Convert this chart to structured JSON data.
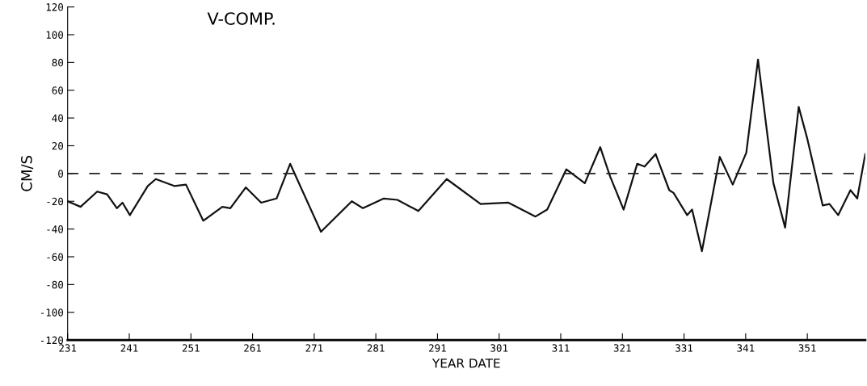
{
  "chart_data": {
    "type": "line",
    "title": "V-COMP.",
    "xlabel": "YEAR DATE",
    "ylabel": "CM/S",
    "x": [
      231,
      233.1,
      235.8,
      237.4,
      239.0,
      239.9,
      241.1,
      244.0,
      245.3,
      248.3,
      250.2,
      253.0,
      256.1,
      257.4,
      259.9,
      262.4,
      264.9,
      267.1,
      272.1,
      277.1,
      278.9,
      282.3,
      284.5,
      287.9,
      292.5,
      298.0,
      302.5,
      306.9,
      308.8,
      311.9,
      314.9,
      317.4,
      319.0,
      321.2,
      323.4,
      324.6,
      326.4,
      328.6,
      329.3,
      331.5,
      332.3,
      333.9,
      336.8,
      338.9,
      341.1,
      343.0,
      345.5,
      347.4,
      349.6,
      351.0,
      353.5,
      354.6,
      356.0,
      358.0,
      359.1,
      360.4
    ],
    "series": [
      {
        "color": "#111111",
        "values": [
          -20,
          -24,
          -13,
          -15,
          -25,
          -21,
          -30,
          -9,
          -4,
          -9,
          -8,
          -34,
          -24,
          -25,
          -10,
          -21,
          -18,
          7,
          -42,
          -20,
          -25,
          -18,
          -19,
          -27,
          -4,
          -22,
          -21,
          -31,
          -26,
          3,
          -7,
          19,
          -2,
          -26,
          7,
          5,
          14,
          -12,
          -14,
          -30,
          -26,
          -56,
          12,
          -8,
          15,
          82,
          -7,
          -39,
          48,
          25,
          -23,
          -22,
          -30,
          -12,
          -18,
          14
        ]
      }
    ],
    "xlim": [
      231,
      360.4
    ],
    "xticks": [
      231,
      241,
      251,
      261,
      271,
      281,
      291,
      301,
      311,
      321,
      331,
      341,
      351
    ],
    "ylim": [
      -120,
      120
    ],
    "yticks": [
      -120,
      -100,
      -80,
      -60,
      -40,
      -20,
      0,
      20,
      40,
      60,
      80,
      100,
      120
    ],
    "ref_lines": [
      {
        "axis": "y",
        "value": 0,
        "color": "#222222",
        "line_style": "dashed"
      }
    ],
    "grid": false,
    "legend": false,
    "line_style": "solid",
    "marker": "none"
  }
}
